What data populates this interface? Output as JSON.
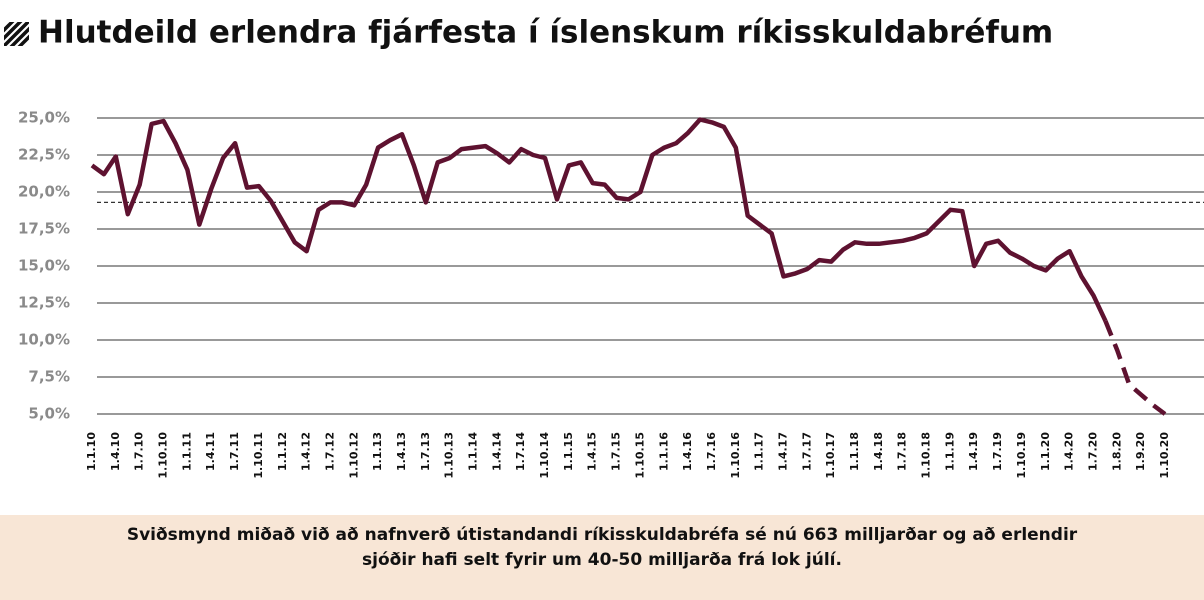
{
  "chart_data": {
    "type": "line",
    "title": "Hlutdeild erlendra fjárfesta í íslenskum ríkisskuldabréfum",
    "note": [
      "Sviðsmynd miðað við að nafnverð útistandandi ríkisskuldabréfa sé nú 663 milljarðar og að erlendir",
      "sjóðir hafi selt fyrir um 40-50 milljarða frá lok júlí."
    ],
    "categories": [
      "1.1.10",
      null,
      "1.4.10",
      null,
      "1.7.10",
      null,
      "1.10.10",
      null,
      "1.1.11",
      null,
      "1.4.11",
      null,
      "1.7.11",
      null,
      "1.10.11",
      null,
      "1.1.12",
      null,
      "1.4.12",
      null,
      "1.7.12",
      null,
      "1.10.12",
      null,
      "1.1.13",
      null,
      "1.4.13",
      null,
      "1.7.13",
      null,
      "1.10.13",
      null,
      "1.1.14",
      null,
      "1.4.14",
      null,
      "1.7.14",
      null,
      "1.10.14",
      null,
      "1.1.15",
      null,
      "1.4.15",
      null,
      "1.7.15",
      null,
      "1.10.15",
      null,
      "1.1.16",
      null,
      "1.4.16",
      null,
      "1.7.16",
      null,
      "1.10.16",
      null,
      "1.1.17",
      null,
      "1.4.17",
      null,
      "1.7.17",
      null,
      "1.10.17",
      null,
      "1.1.18",
      null,
      "1.4.18",
      null,
      "1.7.18",
      null,
      "1.10.18",
      null,
      "1.1.19",
      null,
      "1.4.19",
      null,
      "1.7.19",
      null,
      "1.10.19",
      null,
      "1.1.20",
      null,
      "1.4.20",
      null,
      "1.7.20",
      null,
      "1.8.20",
      null,
      "1.9.20",
      null,
      "1.10.20"
    ],
    "series": [
      {
        "color": "#5e1230",
        "dashed": false,
        "values": [
          21.8,
          21.2,
          22.4,
          18.5,
          20.5,
          24.6,
          24.8,
          23.3,
          21.5,
          17.8,
          20.2,
          22.3,
          23.3,
          20.3,
          20.4,
          19.4,
          18.0,
          16.6,
          16.0,
          18.8,
          19.3,
          19.3,
          19.1,
          20.5,
          23.0,
          23.5,
          23.9,
          21.8,
          19.3,
          22.0,
          22.3,
          22.9,
          23.0,
          23.1,
          22.6,
          22.0,
          22.9,
          22.5,
          22.3,
          19.5,
          21.8,
          22.0,
          20.6,
          20.5,
          19.6,
          19.5,
          20.0,
          22.5,
          23.0,
          23.3,
          24.0,
          24.9,
          24.7,
          24.4,
          23.0,
          18.4,
          17.8,
          17.2,
          14.3,
          14.5,
          14.8,
          15.4,
          15.3,
          16.1,
          16.6,
          16.5,
          16.5,
          16.6,
          16.7,
          16.9,
          17.2,
          18.0,
          18.8,
          18.7,
          15.0,
          16.5,
          16.7,
          15.9,
          15.5,
          15.0,
          14.7,
          15.5,
          16.0,
          14.3,
          13.0,
          11.3,
          null,
          null,
          null,
          null,
          null
        ]
      },
      {
        "color": "#5e1230",
        "dashed": true,
        "values": [
          null,
          null,
          null,
          null,
          null,
          null,
          null,
          null,
          null,
          null,
          null,
          null,
          null,
          null,
          null,
          null,
          null,
          null,
          null,
          null,
          null,
          null,
          null,
          null,
          null,
          null,
          null,
          null,
          null,
          null,
          null,
          null,
          null,
          null,
          null,
          null,
          null,
          null,
          null,
          null,
          null,
          null,
          null,
          null,
          null,
          null,
          null,
          null,
          null,
          null,
          null,
          null,
          null,
          null,
          null,
          null,
          null,
          null,
          null,
          null,
          null,
          null,
          null,
          null,
          null,
          null,
          null,
          null,
          null,
          null,
          null,
          null,
          null,
          null,
          null,
          null,
          null,
          null,
          null,
          null,
          null,
          null,
          null,
          null,
          null,
          11.3,
          9.3,
          7.0,
          6.3,
          5.6,
          5.0
        ]
      }
    ],
    "reference_line": 19.3,
    "ylim": [
      5,
      25
    ],
    "yticks": [
      {
        "value": 5,
        "label": "5,0%"
      },
      {
        "value": 7.5,
        "label": "7,5%"
      },
      {
        "value": 10,
        "label": "10,0%"
      },
      {
        "value": 12.5,
        "label": "12,5%"
      },
      {
        "value": 15,
        "label": "15,0%"
      },
      {
        "value": 17.5,
        "label": "17,5%"
      },
      {
        "value": 20,
        "label": "20,0%"
      },
      {
        "value": 22.5,
        "label": "22,5%"
      },
      {
        "value": 25,
        "label": "25,0%"
      }
    ],
    "grid": true
  }
}
